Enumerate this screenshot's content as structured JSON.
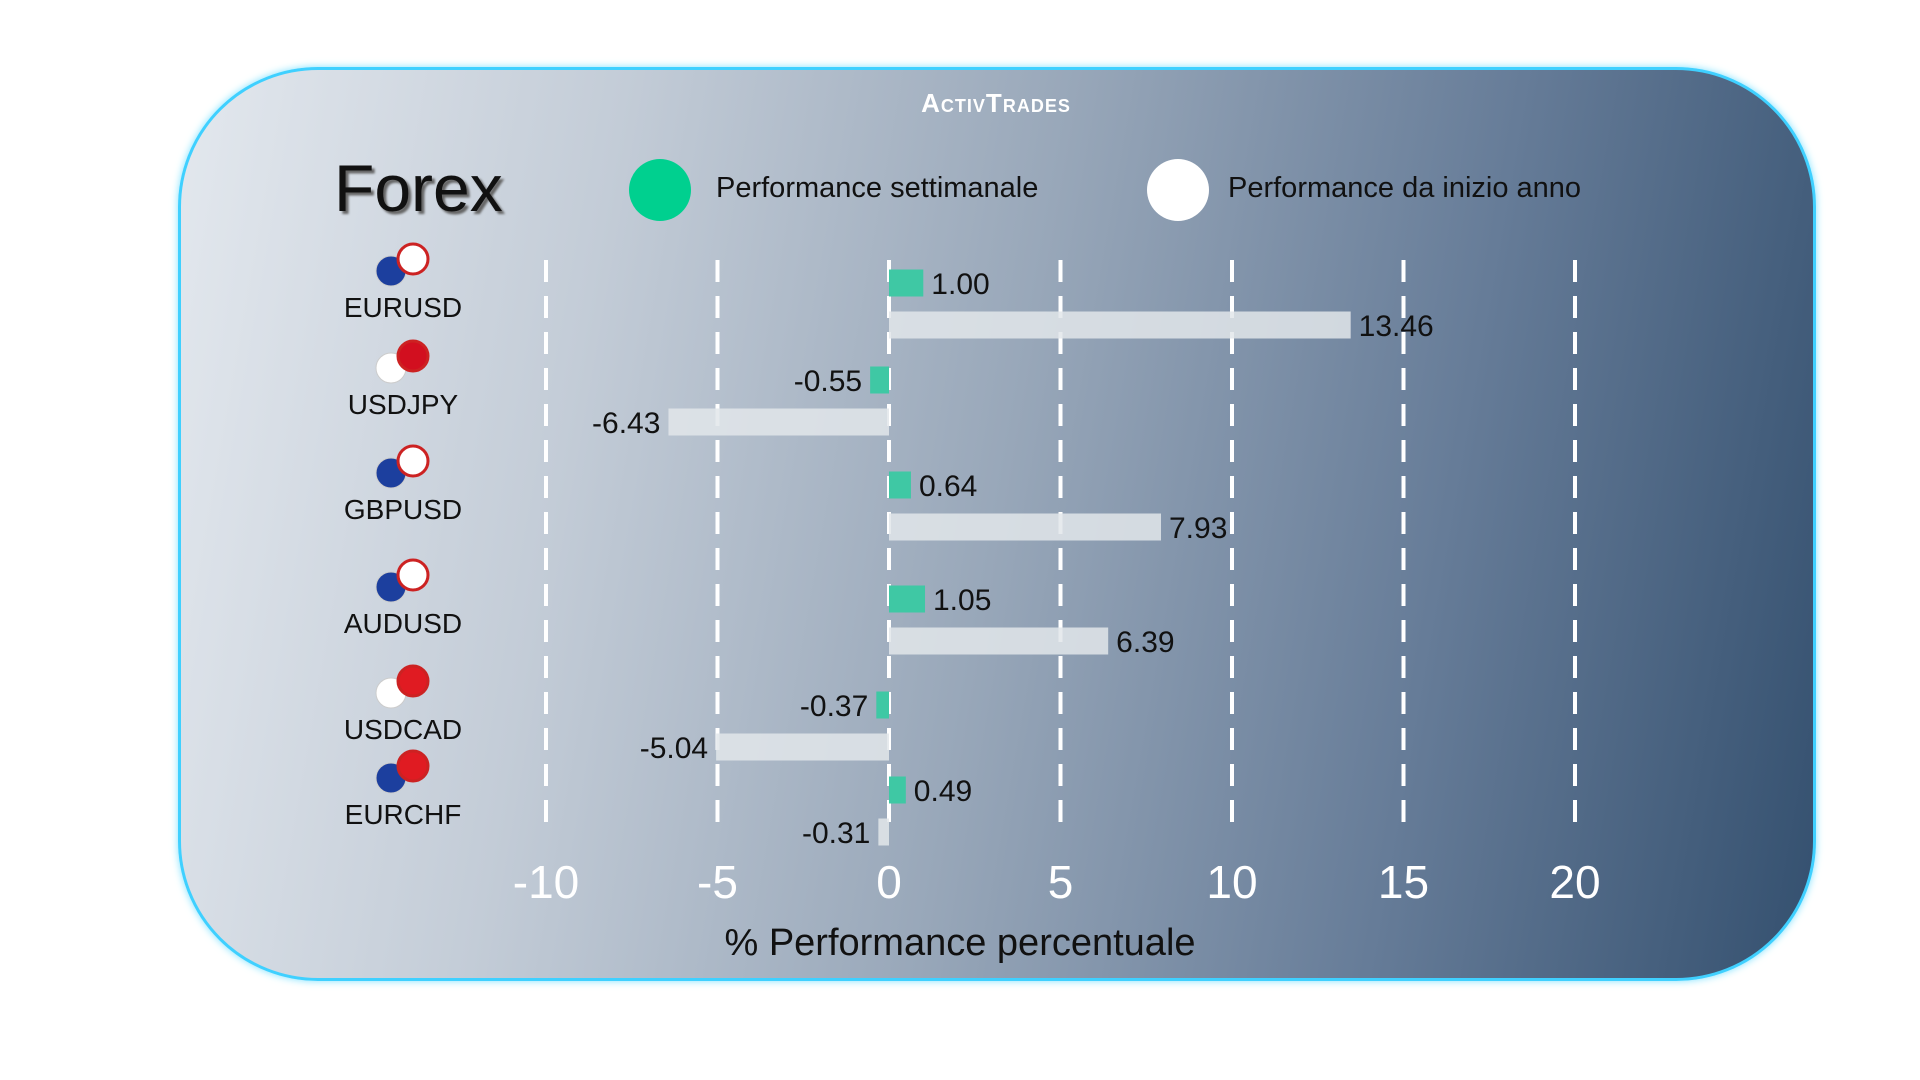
{
  "brand": "ActivTrades",
  "title": "Forex",
  "legend": [
    {
      "label": "Performance settimanale",
      "color": "#00d08f"
    },
    {
      "label": "Performance da inizio anno",
      "color": "#ffffff"
    }
  ],
  "chart_data": {
    "type": "bar",
    "orientation": "horizontal",
    "categories": [
      "EURUSD",
      "USDJPY",
      "GBPUSD",
      "AUDUSD",
      "USDCAD",
      "EURCHF"
    ],
    "series": [
      {
        "name": "Performance settimanale",
        "values": [
          1.0,
          -0.55,
          0.64,
          1.05,
          -0.37,
          0.49
        ],
        "color": "#3fc8a4"
      },
      {
        "name": "Performance da inizio anno",
        "values": [
          13.46,
          -6.43,
          7.93,
          6.39,
          -5.04,
          -0.31
        ],
        "color": "#e2e6ea"
      }
    ],
    "xlabel": "% Performance percentuale",
    "xlim": [
      -10,
      20
    ],
    "xticks": [
      "-10",
      "-5",
      "0",
      "5",
      "10",
      "15",
      "20"
    ],
    "grid": "vertical dashed",
    "legend_position": "top"
  }
}
